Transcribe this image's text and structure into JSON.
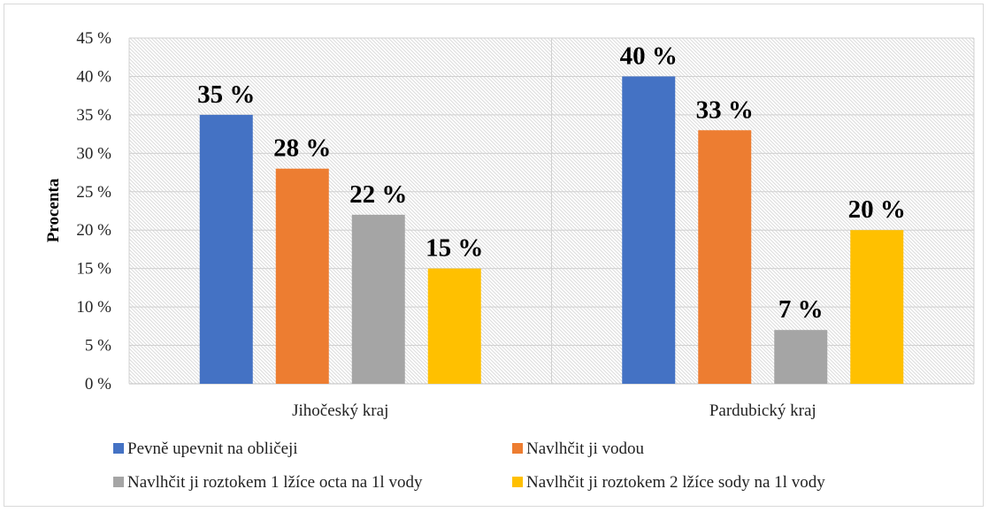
{
  "chart_data": {
    "type": "bar",
    "title": "",
    "xlabel": "",
    "ylabel": "Procenta",
    "ylim": [
      0,
      45
    ],
    "ytick_step": 5,
    "ytick_suffix": " %",
    "grid": true,
    "legend_position": "bottom",
    "categories": [
      "Jihočeský kraj",
      "Pardubický kraj"
    ],
    "series": [
      {
        "name": "Pevně upevnit na obličeji",
        "color": "#4472c4",
        "values": [
          35,
          40
        ],
        "labels": [
          "35 %",
          "40 %"
        ]
      },
      {
        "name": "Navlhčit ji vodou",
        "color": "#ed7d31",
        "values": [
          28,
          33
        ],
        "labels": [
          "28 %",
          "33 %"
        ]
      },
      {
        "name": "Navlhčit ji roztokem 1 lžíce octa na 1l vody",
        "color": "#a5a5a5",
        "values": [
          22,
          7
        ],
        "labels": [
          "22 %",
          "7 %"
        ]
      },
      {
        "name": "Navlhčit ji roztokem 2 lžíce sody na 1l vody",
        "color": "#ffc000",
        "values": [
          15,
          20
        ],
        "labels": [
          "15 %",
          "20 %"
        ]
      }
    ],
    "yticks": [
      "0 %",
      "5 %",
      "10 %",
      "15 %",
      "20 %",
      "25 %",
      "30 %",
      "35 %",
      "40 %",
      "45 %"
    ]
  }
}
